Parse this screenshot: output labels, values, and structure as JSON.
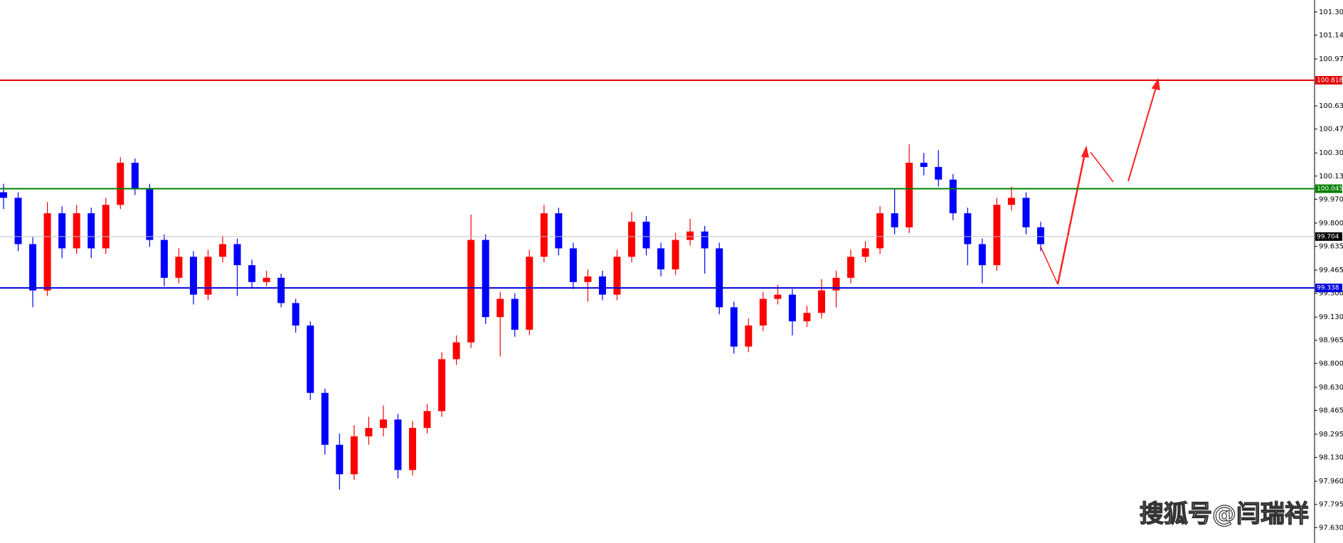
{
  "chart_data": {
    "type": "candlestick",
    "up_color": "#ff0000",
    "down_color": "#0000ff",
    "open": [
      100.02,
      99.98,
      99.65,
      99.32,
      99.87,
      99.62,
      99.87,
      99.62,
      99.93,
      100.23,
      100.05,
      99.68,
      99.41,
      99.56,
      99.29,
      99.56,
      99.65,
      99.5,
      99.38,
      99.41,
      99.23,
      99.07,
      98.59,
      98.22,
      98.01,
      98.28,
      98.34,
      98.4,
      98.04,
      98.34,
      98.46,
      98.83,
      98.95,
      99.68,
      99.13,
      99.26,
      99.04,
      99.56,
      99.87,
      99.62,
      99.38,
      99.42,
      99.29,
      99.56,
      99.81,
      99.62,
      99.47,
      99.68,
      99.74,
      99.62,
      99.2,
      98.92,
      99.07,
      99.26,
      99.29,
      99.1,
      99.16,
      99.32,
      99.41,
      99.56,
      99.62,
      99.87,
      99.77,
      100.23,
      100.2,
      100.11,
      99.87,
      99.65,
      99.5,
      99.93,
      99.98,
      99.77
    ],
    "high": [
      100.08,
      100.02,
      99.7,
      99.95,
      99.92,
      99.93,
      99.91,
      99.98,
      100.27,
      100.26,
      100.08,
      99.72,
      99.62,
      99.6,
      99.61,
      99.71,
      99.69,
      99.54,
      99.46,
      99.44,
      99.26,
      99.1,
      98.62,
      98.3,
      98.36,
      98.42,
      98.5,
      98.44,
      98.39,
      98.51,
      98.88,
      99.0,
      99.86,
      99.72,
      99.31,
      99.3,
      99.61,
      99.93,
      99.91,
      99.66,
      99.47,
      99.46,
      99.61,
      99.88,
      99.85,
      99.66,
      99.73,
      99.83,
      99.78,
      99.66,
      99.24,
      99.12,
      99.31,
      99.36,
      99.33,
      99.21,
      99.4,
      99.46,
      99.61,
      99.67,
      99.92,
      100.05,
      100.36,
      100.3,
      100.32,
      100.15,
      99.91,
      99.69,
      99.98,
      100.06,
      100.02,
      99.81
    ],
    "low": [
      99.9,
      99.6,
      99.2,
      99.28,
      99.55,
      99.58,
      99.55,
      99.58,
      99.9,
      100.0,
      99.63,
      99.35,
      99.37,
      99.22,
      99.25,
      99.52,
      99.28,
      99.34,
      99.35,
      99.2,
      99.02,
      98.54,
      98.15,
      97.9,
      97.97,
      98.22,
      98.28,
      97.98,
      98.0,
      98.3,
      98.42,
      98.79,
      98.91,
      99.08,
      98.85,
      98.99,
      99.0,
      99.52,
      99.57,
      99.33,
      99.24,
      99.25,
      99.25,
      99.52,
      99.57,
      99.42,
      99.43,
      99.64,
      99.44,
      99.15,
      98.87,
      98.88,
      99.03,
      99.22,
      99.0,
      99.06,
      99.12,
      99.2,
      99.37,
      99.52,
      99.58,
      99.72,
      99.73,
      100.14,
      100.06,
      99.82,
      99.5,
      99.37,
      99.46,
      99.89,
      99.72,
      99.6
    ],
    "close": [
      99.98,
      99.65,
      99.32,
      99.87,
      99.62,
      99.87,
      99.62,
      99.93,
      100.23,
      100.05,
      99.68,
      99.41,
      99.56,
      99.29,
      99.56,
      99.65,
      99.5,
      99.38,
      99.41,
      99.23,
      99.07,
      98.59,
      98.22,
      98.01,
      98.28,
      98.34,
      98.4,
      98.04,
      98.34,
      98.46,
      98.83,
      98.95,
      99.68,
      99.13,
      99.26,
      99.04,
      99.56,
      99.87,
      99.62,
      99.38,
      99.42,
      99.29,
      99.56,
      99.81,
      99.62,
      99.47,
      99.68,
      99.74,
      99.62,
      99.2,
      98.92,
      99.07,
      99.26,
      99.29,
      99.1,
      99.16,
      99.32,
      99.41,
      99.56,
      99.62,
      99.87,
      99.77,
      100.23,
      100.2,
      100.11,
      99.87,
      99.65,
      99.5,
      99.93,
      99.98,
      99.77,
      99.65
    ],
    "ylim": [
      97.52,
      101.39
    ],
    "yticks": [
      {
        "value": 101.305,
        "label": "101.305"
      },
      {
        "value": 101.14,
        "label": "101.140"
      },
      {
        "value": 100.97,
        "label": "100.970"
      },
      {
        "value": 100.635,
        "label": "100.635"
      },
      {
        "value": 100.47,
        "label": "100.470"
      },
      {
        "value": 100.3,
        "label": "100.300"
      },
      {
        "value": 100.135,
        "label": "100.135"
      },
      {
        "value": 99.97,
        "label": "99.970"
      },
      {
        "value": 99.8,
        "label": "99.800"
      },
      {
        "value": 99.635,
        "label": "99.635"
      },
      {
        "value": 99.465,
        "label": "99.465"
      },
      {
        "value": 99.3,
        "label": "99.300"
      },
      {
        "value": 99.13,
        "label": "99.130"
      },
      {
        "value": 98.965,
        "label": "98.965"
      },
      {
        "value": 98.8,
        "label": "98.800"
      },
      {
        "value": 98.63,
        "label": "98.630"
      },
      {
        "value": 98.465,
        "label": "98.465"
      },
      {
        "value": 98.295,
        "label": "98.295"
      },
      {
        "value": 98.13,
        "label": "98.130"
      },
      {
        "value": 97.96,
        "label": "97.960"
      },
      {
        "value": 97.795,
        "label": "97.795"
      },
      {
        "value": 97.63,
        "label": "97.630"
      }
    ],
    "levels": [
      {
        "value": 100.818,
        "label": "100.818",
        "color": "#e00000",
        "width": 2
      },
      {
        "value": 100.045,
        "label": "100.045",
        "color": "#008000",
        "width": 2
      },
      {
        "value": 99.704,
        "label": "99.704",
        "color": "#c0c0c0",
        "box": "#000000",
        "width": 1
      },
      {
        "value": 99.338,
        "label": "99.338",
        "color": "#0000e0",
        "width": 2
      }
    ],
    "watermark": "搜狐号@闫瑞祥"
  }
}
